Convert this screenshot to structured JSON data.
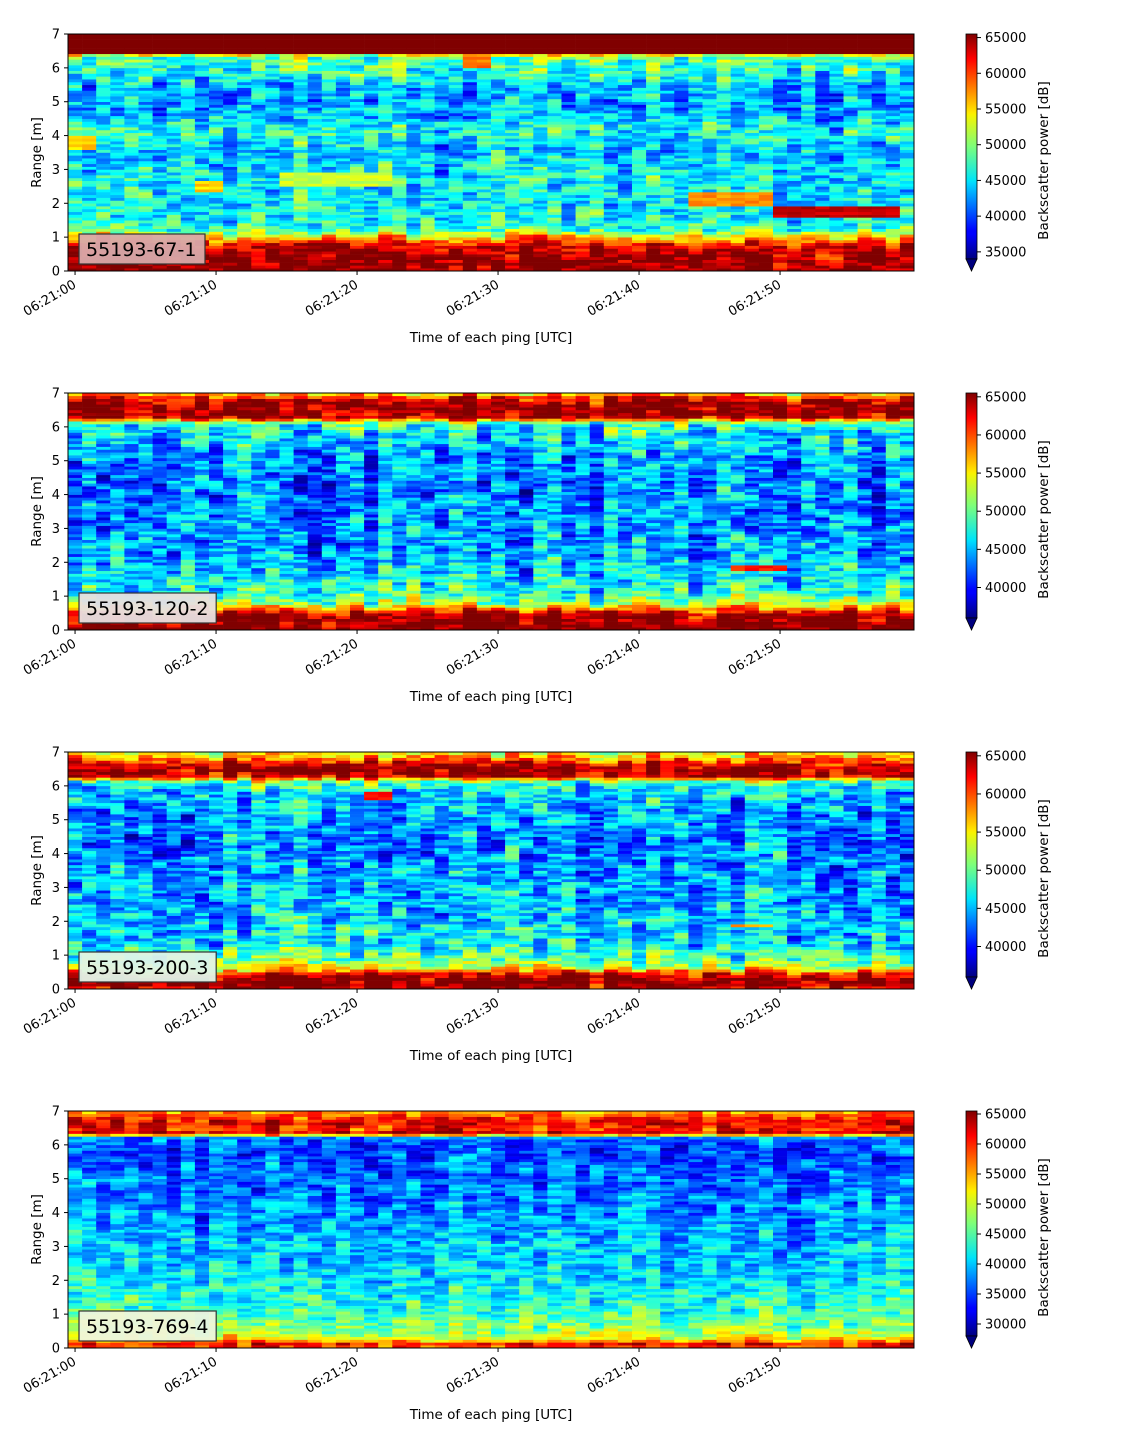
{
  "figure": {
    "colormap": "jet",
    "common_x_axis": {
      "xlabel": "Time of each ping [UTC]",
      "tick_labels": [
        "06:21:00",
        "06:21:10",
        "06:21:20",
        "06:21:30",
        "06:21:40",
        "06:21:50"
      ],
      "tick_seconds": [
        0,
        10,
        20,
        30,
        40,
        50
      ],
      "xlim_seconds": [
        -0.5,
        59.5
      ]
    },
    "common_y_axis": {
      "ylabel": "Range [m]",
      "tick_labels": [
        "0",
        "1",
        "2",
        "3",
        "4",
        "5",
        "6",
        "7"
      ],
      "ylim": [
        0,
        7
      ]
    },
    "colorbar_label": "Backscatter power [dB]",
    "colorbar_extend": "min"
  },
  "chart_data": [
    {
      "type": "heatmap",
      "label": "55193-67-1",
      "label_bg": "#d8a9aa",
      "x_start": "06:21:00",
      "x_end": "06:21:59",
      "xlabel": "Time of each ping [UTC]",
      "ylabel": "Range [m]",
      "ylim": [
        0,
        7
      ],
      "colorbar": {
        "label": "Backscatter power [dB]",
        "vmin": 34000,
        "vmax": 65500,
        "ticks": [
          35000,
          40000,
          45000,
          50000,
          55000,
          60000,
          65000
        ]
      },
      "profile": {
        "range_m": [
          0.0,
          0.3,
          0.6,
          0.8,
          0.9,
          1.05,
          1.2,
          1.5,
          2.0,
          2.5,
          3.0,
          3.5,
          4.0,
          4.3,
          4.6,
          5.0,
          5.5,
          5.8,
          6.1,
          6.35,
          6.45,
          7.0
        ],
        "mean_dB": [
          65500,
          65500,
          64000,
          62000,
          58500,
          54000,
          48500,
          46500,
          45000,
          45500,
          45500,
          44000,
          46500,
          46000,
          43500,
          42500,
          43500,
          46500,
          47500,
          49500,
          65500,
          65500
        ]
      },
      "features": [
        {
          "t0": 44,
          "t1": 49,
          "r0": 1.95,
          "r1": 2.3,
          "dB": 57000
        },
        {
          "t0": 50,
          "t1": 58,
          "r0": 1.6,
          "r1": 1.95,
          "dB": 63500
        },
        {
          "t0": 9,
          "t1": 10,
          "r0": 2.3,
          "r1": 2.65,
          "dB": 55000
        },
        {
          "t0": 0,
          "t1": 1,
          "r0": 3.6,
          "r1": 4.0,
          "dB": 55000
        },
        {
          "t0": 28,
          "t1": 29,
          "r0": 6.0,
          "r1": 6.6,
          "dB": 58000
        },
        {
          "t0": 15,
          "t1": 22,
          "r0": 2.5,
          "r1": 2.9,
          "dB": 52000
        }
      ]
    },
    {
      "type": "heatmap",
      "label": "55193-120-2",
      "label_bg": "#e8dfe0",
      "x_start": "06:21:00",
      "x_end": "06:21:59",
      "xlabel": "Time of each ping [UTC]",
      "ylabel": "Range [m]",
      "ylim": [
        0,
        7
      ],
      "colorbar": {
        "label": "Backscatter power [dB]",
        "vmin": 36000,
        "vmax": 65500,
        "ticks": [
          40000,
          45000,
          50000,
          55000,
          60000,
          65000
        ]
      },
      "profile": {
        "range_m": [
          0.0,
          0.2,
          0.45,
          0.6,
          0.8,
          1.1,
          1.5,
          2.0,
          3.0,
          4.0,
          5.0,
          5.8,
          6.1,
          6.3,
          6.5,
          6.85,
          7.0
        ],
        "mean_dB": [
          65500,
          65500,
          65000,
          59000,
          51500,
          48500,
          46500,
          45000,
          44000,
          43500,
          44000,
          46000,
          48500,
          64500,
          65500,
          62000,
          55000
        ]
      },
      "features": [
        {
          "t0": 47,
          "t1": 50,
          "r0": 1.75,
          "r1": 1.95,
          "dB": 61000
        }
      ]
    },
    {
      "type": "heatmap",
      "label": "55193-200-3",
      "label_bg": "#dff3e8",
      "x_start": "06:21:00",
      "x_end": "06:21:59",
      "xlabel": "Time of each ping [UTC]",
      "ylabel": "Range [m]",
      "ylim": [
        0,
        7
      ],
      "colorbar": {
        "label": "Backscatter power [dB]",
        "vmin": 36000,
        "vmax": 65500,
        "ticks": [
          40000,
          45000,
          50000,
          55000,
          60000,
          65000
        ]
      },
      "profile": {
        "range_m": [
          0.0,
          0.12,
          0.25,
          0.45,
          0.6,
          0.9,
          1.3,
          2.0,
          3.0,
          4.0,
          5.0,
          5.8,
          6.1,
          6.3,
          6.5,
          6.75,
          7.0
        ],
        "mean_dB": [
          63000,
          65500,
          65500,
          62000,
          54000,
          49500,
          47000,
          45500,
          44500,
          43500,
          44000,
          45500,
          48500,
          64500,
          65500,
          60000,
          53500
        ]
      },
      "features": [
        {
          "t0": 21,
          "t1": 22,
          "r0": 5.6,
          "r1": 5.85,
          "dB": 61000
        },
        {
          "t0": 47,
          "t1": 49,
          "r0": 1.8,
          "r1": 1.95,
          "dB": 57000
        }
      ]
    },
    {
      "type": "heatmap",
      "label": "55193-769-4",
      "label_bg": "#eef6dc",
      "x_start": "06:21:00",
      "x_end": "06:21:59",
      "xlabel": "Time of each ping [UTC]",
      "ylabel": "Range [m]",
      "ylim": [
        0,
        7
      ],
      "colorbar": {
        "label": "Backscatter power [dB]",
        "vmin": 28000,
        "vmax": 65500,
        "ticks": [
          30000,
          35000,
          40000,
          45000,
          50000,
          55000,
          60000,
          65000
        ]
      },
      "profile": {
        "range_m": [
          0.0,
          0.08,
          0.15,
          0.3,
          0.45,
          0.8,
          1.2,
          2.0,
          3.0,
          4.0,
          5.0,
          5.8,
          6.2,
          6.35,
          6.5,
          6.65,
          7.0
        ],
        "mean_dB": [
          52000,
          65500,
          58000,
          51000,
          49000,
          46000,
          44000,
          41500,
          40000,
          38000,
          37000,
          35500,
          36500,
          63000,
          58500,
          63000,
          54000
        ]
      },
      "features": []
    }
  ]
}
